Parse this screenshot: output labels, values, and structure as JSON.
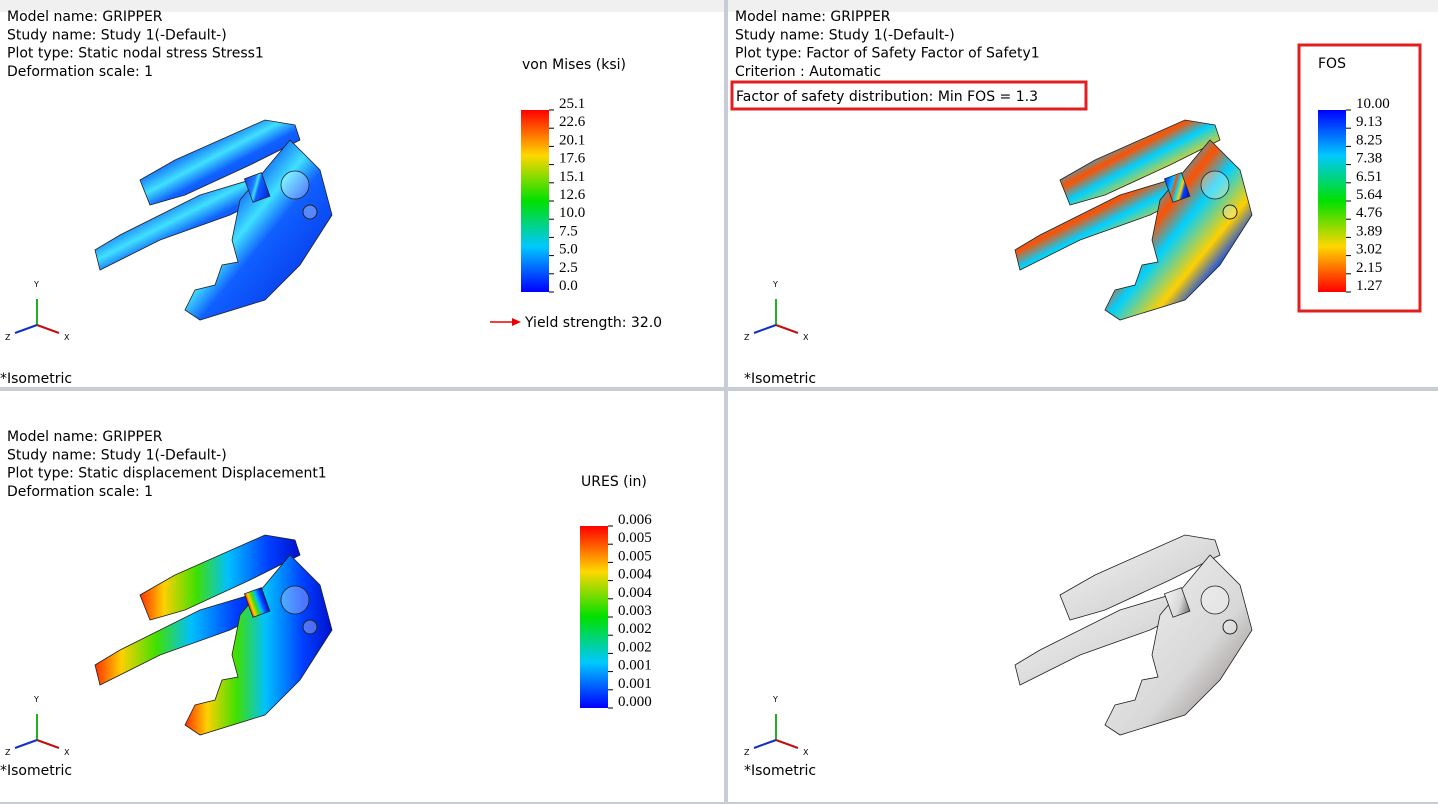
{
  "panels": [
    {
      "info": [
        "Model name: GRIPPER",
        "Study name: Study 1(-Default-)",
        "Plot type: Static nodal stress Stress1",
        "Deformation scale: 1"
      ],
      "legend": {
        "title": "von Mises (ksi)",
        "labels": [
          "25.1",
          "22.6",
          "20.1",
          "17.6",
          "15.1",
          "12.6",
          "10.0",
          "7.5",
          "5.0",
          "2.5",
          "0.0"
        ]
      },
      "yield": "Yield strength: 32.0",
      "triad": [
        "Y",
        "X",
        "Z"
      ],
      "view": "*Isometric"
    },
    {
      "info": [
        "Model name: GRIPPER",
        "Study name: Study 1(-Default-)",
        "Plot type: Factor of Safety Factor of Safety1",
        "Criterion : Automatic"
      ],
      "highlight": "Factor of safety distribution: Min FOS = 1.3",
      "legend": {
        "title": "FOS",
        "labels": [
          "10.00",
          "9.13",
          "8.25",
          "7.38",
          "6.51",
          "5.64",
          "4.76",
          "3.89",
          "3.02",
          "2.15",
          "1.27"
        ]
      },
      "triad": [
        "Y",
        "X",
        "Z"
      ],
      "view": "*Isometric"
    },
    {
      "info": [
        "Model name: GRIPPER",
        "Study name: Study 1(-Default-)",
        "Plot type: Static displacement Displacement1",
        "Deformation scale: 1"
      ],
      "legend": {
        "title": "URES (in)",
        "labels": [
          "0.006",
          "0.005",
          "0.005",
          "0.004",
          "0.004",
          "0.003",
          "0.002",
          "0.002",
          "0.001",
          "0.001",
          "0.000"
        ]
      },
      "triad": [
        "Y",
        "X",
        "Z"
      ],
      "view": "*Isometric"
    },
    {
      "triad": [
        "Y",
        "X",
        "Z"
      ],
      "view": "*Isometric"
    }
  ]
}
